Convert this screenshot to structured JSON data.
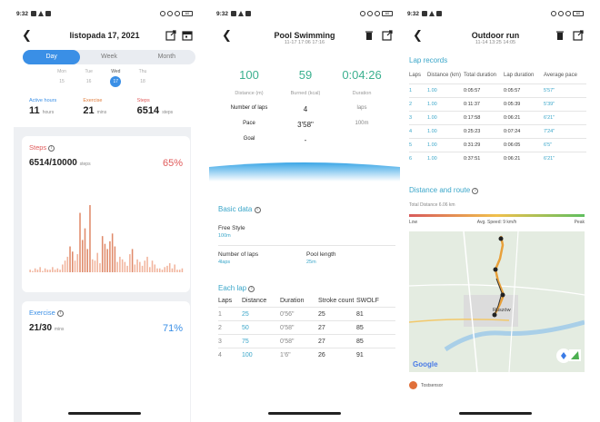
{
  "status": {
    "time": "9:32",
    "battery": "60"
  },
  "screen1": {
    "title": "listopada 17, 2021",
    "tabs": [
      "Day",
      "Week",
      "Month"
    ],
    "week_days": [
      {
        "name": "Mon",
        "date": "15",
        "selected": false
      },
      {
        "name": "Tue",
        "date": "16",
        "selected": false
      },
      {
        "name": "Wed",
        "date": "17",
        "selected": true
      },
      {
        "name": "Thu",
        "date": "18",
        "selected": false
      }
    ],
    "stats": [
      {
        "label": "Active hours",
        "value": "11",
        "unit": "hours",
        "color": "#3a8fe6"
      },
      {
        "label": "Exercise",
        "value": "21",
        "unit": "mins",
        "color": "#e07b3a"
      },
      {
        "label": "Steps",
        "value": "6514",
        "unit": "steps",
        "color": "#e05a5a"
      }
    ],
    "steps_card": {
      "title": "Steps",
      "value": "6514/10000",
      "unit": "steps",
      "percent": "65%"
    },
    "exercise_card": {
      "title": "Exercise",
      "value": "21/30",
      "unit": "mins",
      "percent": "71%"
    },
    "step_bars": [
      2,
      1,
      3,
      2,
      4,
      1,
      3,
      2,
      2,
      4,
      2,
      3,
      2,
      6,
      9,
      12,
      20,
      16,
      9,
      14,
      46,
      25,
      34,
      18,
      52,
      10,
      9,
      15,
      7,
      28,
      22,
      18,
      24,
      30,
      20,
      8,
      12,
      10,
      8,
      5,
      14,
      18,
      6,
      10,
      8,
      5,
      9,
      12,
      4,
      9,
      6,
      3,
      3,
      2,
      4,
      5,
      7,
      3,
      6,
      2,
      2,
      3
    ]
  },
  "screen2": {
    "title": "Pool Swimming",
    "subtitle": "11-17 17:06 17:16",
    "big_stats": [
      {
        "value": "100",
        "label": "Distance (m)",
        "color": "#3bb08f"
      },
      {
        "value": "59",
        "label": "Burned (kcal)",
        "color": "#3bb08f"
      },
      {
        "value": "0:04:26",
        "label": "Duration",
        "color": "#3bb08f"
      }
    ],
    "rows": [
      {
        "label": "Number of laps",
        "value": "4",
        "unit": "laps"
      },
      {
        "label": "Pace",
        "value": "3'58\"",
        "unit": "100m"
      },
      {
        "label": "Goal",
        "value": "-",
        "unit": ""
      }
    ],
    "basic_data_title": "Basic data",
    "style_label": "Free Style",
    "style_value": "100m",
    "laps_label": "Number of laps",
    "laps_value": "4laps",
    "pool_label": "Pool length",
    "pool_value": "25m",
    "each_lap_title": "Each lap",
    "lap_headers": [
      "Laps",
      "Distance",
      "Duration",
      "Stroke count",
      "SWOLF"
    ],
    "laps": [
      {
        "lap": "1",
        "distance": "25",
        "duration": "0'56\"",
        "stroke": "25",
        "swolf": "81"
      },
      {
        "lap": "2",
        "distance": "50",
        "duration": "0'58\"",
        "stroke": "27",
        "swolf": "85"
      },
      {
        "lap": "3",
        "distance": "75",
        "duration": "0'58\"",
        "stroke": "27",
        "swolf": "85"
      },
      {
        "lap": "4",
        "distance": "100",
        "duration": "1'6\"",
        "stroke": "26",
        "swolf": "91"
      }
    ]
  },
  "screen3": {
    "title": "Outdoor run",
    "subtitle": "11-14 13:25 14:05",
    "lap_records_title": "Lap records",
    "lap_headers": [
      "Laps",
      "Distance (km)",
      "Total duration",
      "Lap duration",
      "Average pace"
    ],
    "laps": [
      {
        "lap": "1",
        "distance": "1.00",
        "total": "0:05:57",
        "lap_dur": "0:05:57",
        "pace": "5'57\""
      },
      {
        "lap": "2",
        "distance": "1.00",
        "total": "0:11:37",
        "lap_dur": "0:05:39",
        "pace": "5'39\""
      },
      {
        "lap": "3",
        "distance": "1.00",
        "total": "0:17:58",
        "lap_dur": "0:06:21",
        "pace": "6'21\""
      },
      {
        "lap": "4",
        "distance": "1.00",
        "total": "0:25:23",
        "lap_dur": "0:07:24",
        "pace": "7'24\""
      },
      {
        "lap": "5",
        "distance": "1.00",
        "total": "0:31:29",
        "lap_dur": "0:06:05",
        "pace": "6'5\""
      },
      {
        "lap": "6",
        "distance": "1.00",
        "total": "0:37:51",
        "lap_dur": "0:06:21",
        "pace": "6'21\""
      }
    ],
    "distance_route_title": "Distance and route",
    "total_distance": "Total Distance 6.06 km",
    "speed_low": "Low",
    "speed_avg": "Avg. Speed: 9 km/h",
    "speed_peak": "Peak",
    "map_town": "Ruszów",
    "map_brand": "Google",
    "footer_app": "Tostsensor"
  }
}
